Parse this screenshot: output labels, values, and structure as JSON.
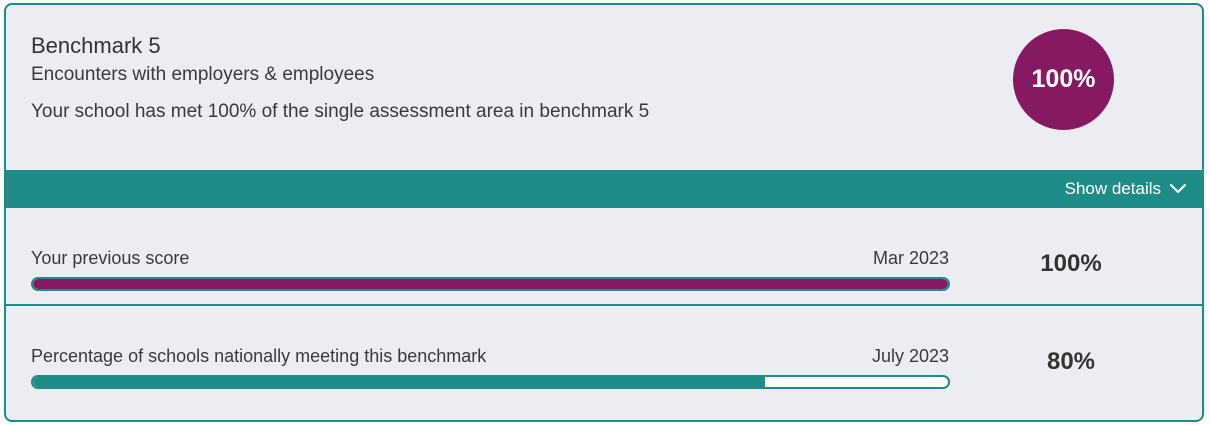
{
  "colors": {
    "accent_teal": "#1e8c87",
    "score_purple": "#861a62",
    "card_background": "#ececf3"
  },
  "header": {
    "title": "Benchmark 5",
    "subtitle": "Encounters with employers & employees",
    "summary": "Your school has met 100% of the single assessment area in benchmark 5",
    "score": "100%"
  },
  "details": {
    "toggle_label": "Show details",
    "toggle_icon": "chevron-down-icon"
  },
  "rows": [
    {
      "label": "Your previous score",
      "date": "Mar 2023",
      "value": "100%",
      "progress": 1.0,
      "bar_color": "#861a62"
    },
    {
      "label": "Percentage of schools nationally meeting this benchmark",
      "date": "July 2023",
      "value": "80%",
      "progress": 0.8,
      "bar_color": "#1e8c87"
    }
  ]
}
